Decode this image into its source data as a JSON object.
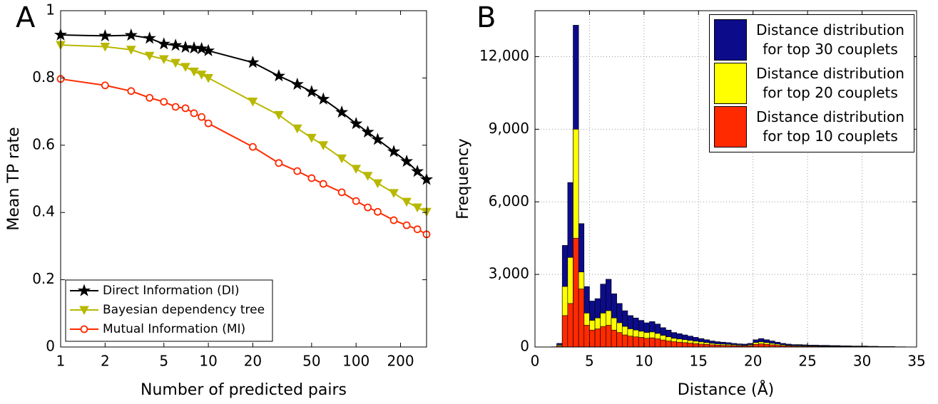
{
  "chart_data": [
    {
      "type": "line",
      "panel_label": "A",
      "xlabel": "Number of predicted pairs",
      "ylabel": "Mean TP rate",
      "x": [
        1,
        2,
        3,
        4,
        5,
        6,
        7,
        8,
        9,
        10,
        20,
        30,
        40,
        50,
        60,
        80,
        100,
        120,
        140,
        180,
        220,
        260,
        300
      ],
      "xscale": "log",
      "xlim": [
        1,
        300
      ],
      "xticks": [
        1,
        2,
        5,
        10,
        20,
        50,
        100,
        200
      ],
      "ylim": [
        0,
        1
      ],
      "yticks": [
        0,
        0.2,
        0.4,
        0.6,
        0.8,
        1
      ],
      "grid": false,
      "legend": "lower left",
      "series": [
        {
          "name": "Direct Information (DI)",
          "color": "#000000",
          "marker": "star",
          "values": [
            0.928,
            0.925,
            0.927,
            0.918,
            0.901,
            0.897,
            0.891,
            0.889,
            0.887,
            0.881,
            0.846,
            0.806,
            0.781,
            0.759,
            0.737,
            0.698,
            0.664,
            0.639,
            0.617,
            0.581,
            0.552,
            0.522,
            0.498
          ]
        },
        {
          "name": "Bayesian dependency tree",
          "color": "#b8b800",
          "marker": "triangle-down",
          "values": [
            0.898,
            0.893,
            0.884,
            0.866,
            0.856,
            0.845,
            0.833,
            0.819,
            0.81,
            0.8,
            0.73,
            0.69,
            0.65,
            0.622,
            0.6,
            0.561,
            0.53,
            0.509,
            0.487,
            0.458,
            0.432,
            0.415,
            0.402
          ]
        },
        {
          "name": "Mutual Information (MI)",
          "color": "#ff2a00",
          "marker": "circle",
          "values": [
            0.797,
            0.778,
            0.761,
            0.741,
            0.729,
            0.714,
            0.71,
            0.695,
            0.684,
            0.665,
            0.595,
            0.547,
            0.523,
            0.502,
            0.485,
            0.46,
            0.434,
            0.415,
            0.402,
            0.377,
            0.362,
            0.35,
            0.335
          ]
        }
      ]
    },
    {
      "type": "histogram",
      "panel_label": "B",
      "xlabel": "Distance (Å)",
      "ylabel": "Frequency",
      "bins": [
        1.5,
        2,
        2.5,
        3,
        3.5,
        4,
        4.5,
        5,
        5.5,
        6,
        6.5,
        7,
        7.5,
        8,
        8.5,
        9,
        9.5,
        10,
        10.5,
        11,
        11.5,
        12,
        12.5,
        13,
        13.5,
        14,
        14.5,
        15,
        15.5,
        16,
        16.5,
        17,
        17.5,
        18,
        18.5,
        19,
        19.5,
        20,
        20.5,
        21,
        21.5,
        22,
        22.5,
        23,
        23.5,
        24,
        24.5,
        25,
        25.5,
        26,
        26.5,
        27,
        27.5,
        28,
        28.5,
        29,
        29.5,
        30,
        30.5,
        31,
        31.5,
        32,
        32.5,
        33,
        33.5,
        34,
        34.5
      ],
      "xlim": [
        0,
        35
      ],
      "xticks": [
        0,
        5,
        10,
        15,
        20,
        25,
        30,
        35
      ],
      "ylim": [
        0,
        13900
      ],
      "yticks": [
        0,
        {
          "value": 3000,
          "label": "3,000"
        },
        {
          "value": 6000,
          "label": "6,000"
        },
        {
          "value": 9000,
          "label": "9,000"
        },
        {
          "value": 12000,
          "label": "12,000"
        }
      ],
      "grid": true,
      "legend": "upper right",
      "series": [
        {
          "name": "Distance distribution for top 30 couplets",
          "color": "#0c0c8a",
          "values": [
            10,
            150,
            4200,
            6800,
            13300,
            5100,
            2500,
            1900,
            2000,
            2600,
            2800,
            2200,
            1800,
            1500,
            1300,
            1200,
            1100,
            1000,
            1050,
            950,
            800,
            700,
            600,
            550,
            500,
            450,
            400,
            350,
            300,
            250,
            220,
            200,
            180,
            150,
            130,
            120,
            150,
            300,
            350,
            300,
            250,
            200,
            150,
            120,
            100,
            100,
            90,
            80,
            80,
            70,
            70,
            60,
            60,
            50,
            50,
            40,
            40,
            40,
            30,
            30,
            20,
            20,
            20,
            10,
            10,
            5
          ]
        },
        {
          "name": "Distance distribution for top 20 couplets",
          "color": "#ffff00",
          "values": [
            5,
            80,
            2500,
            3700,
            9000,
            3100,
            1400,
            1100,
            1200,
            1400,
            1500,
            1200,
            1000,
            850,
            750,
            700,
            650,
            600,
            620,
            560,
            480,
            420,
            360,
            330,
            300,
            270,
            240,
            210,
            180,
            150,
            130,
            120,
            110,
            90,
            80,
            70,
            90,
            180,
            210,
            180,
            150,
            120,
            90,
            70,
            60,
            60,
            55,
            50,
            50,
            40,
            40,
            35,
            35,
            30,
            30,
            25,
            25,
            25,
            20,
            20,
            12,
            12,
            12,
            6,
            6,
            3
          ]
        },
        {
          "name": "Distance distribution for top 10 couplets",
          "color": "#ff2a00",
          "values": [
            2,
            40,
            1300,
            1800,
            4500,
            2400,
            900,
            700,
            750,
            850,
            900,
            700,
            600,
            500,
            450,
            420,
            400,
            360,
            380,
            340,
            290,
            250,
            220,
            200,
            180,
            160,
            140,
            120,
            110,
            90,
            80,
            70,
            65,
            55,
            50,
            45,
            55,
            110,
            130,
            110,
            90,
            70,
            55,
            45,
            35,
            35,
            30,
            30,
            30,
            25,
            25,
            20,
            20,
            18,
            18,
            15,
            15,
            15,
            12,
            12,
            8,
            8,
            8,
            4,
            4,
            2
          ]
        }
      ]
    }
  ]
}
